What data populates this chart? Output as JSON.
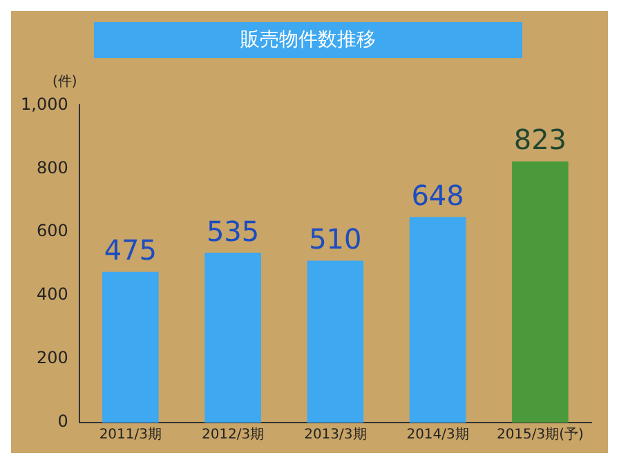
{
  "chart_data": {
    "type": "bar",
    "title": "販売物件数推移",
    "ylabel": "(件)",
    "categories": [
      "2011/3期",
      "2012/3期",
      "2013/3期",
      "2014/3期",
      "2015/3期(予)"
    ],
    "values": [
      475,
      535,
      510,
      648,
      823
    ],
    "colors": [
      "#3ea8f0",
      "#3ea8f0",
      "#3ea8f0",
      "#3ea8f0",
      "#4a9a3c"
    ],
    "ylim": [
      0,
      1000
    ],
    "yticks": [
      0,
      200,
      400,
      600,
      800,
      {
        "value": 1000,
        "label": "1,000"
      }
    ],
    "grid": false,
    "data_labels": true
  }
}
